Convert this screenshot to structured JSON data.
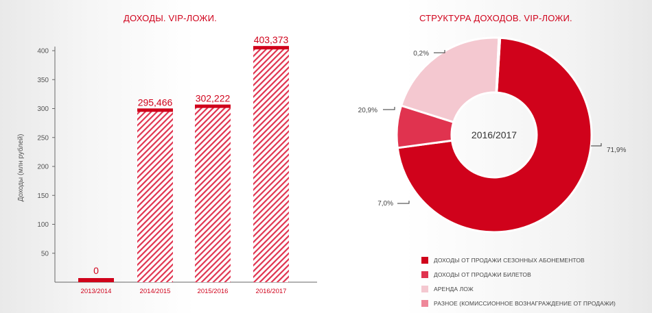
{
  "chart_data": [
    {
      "type": "bar",
      "title": "ДОХОДЫ. VIP-ЛОЖИ.",
      "ylabel": "Доходы (млн рублей)",
      "xlabel": "",
      "categories": [
        "2013/2014",
        "2014/2015",
        "2015/2016",
        "2016/2017"
      ],
      "values": [
        0,
        295.466,
        302.222,
        403.373
      ],
      "value_labels": [
        "0",
        "295,466",
        "302,222",
        "403,373"
      ],
      "ylim": [
        0,
        400
      ],
      "yticks": [
        50,
        100,
        150,
        200,
        250,
        300,
        350,
        400
      ],
      "grid": false,
      "bar_color": "#d0021b"
    },
    {
      "type": "pie",
      "title": "СТРУКТУРА ДОХОДОВ. VIP-ЛОЖИ.",
      "center_label": "2016/2017",
      "slices": [
        {
          "name": "ДОХОДЫ ОТ ПРОДАЖИ СЕЗОННЫХ АБОНЕМЕНТОВ",
          "value": 71.9,
          "label": "71,9%",
          "color": "#d0021b"
        },
        {
          "name": "ДОХОДЫ ОТ ПРОДАЖИ БИЛЕТОВ",
          "value": 7.0,
          "label": "7,0%",
          "color": "#e0334f"
        },
        {
          "name": "АРЕНДА ЛОЖ",
          "value": 20.9,
          "label": "20,9%",
          "color": "#f4c8d0"
        },
        {
          "name": "РАЗНОЕ (КОМИССИОННОЕ ВОЗНАГРАЖДЕНИЕ ОТ ПРОДАЖИ)",
          "value": 0.2,
          "label": "0,2%",
          "color": "#ee8799"
        }
      ],
      "legend_position": "bottom"
    }
  ]
}
